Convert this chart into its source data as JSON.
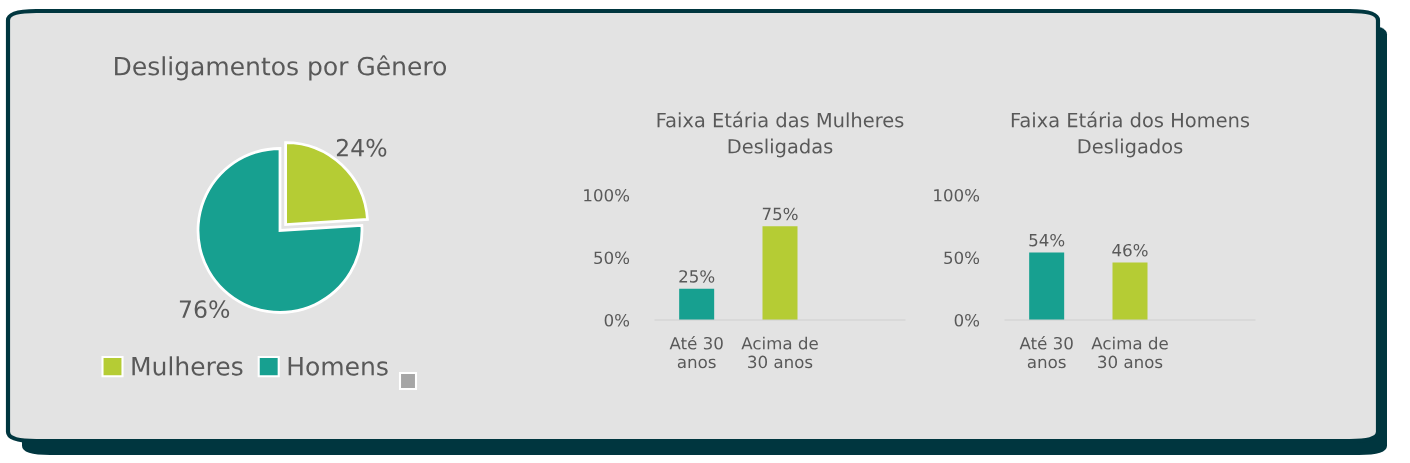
{
  "chart_data": [
    {
      "type": "pie",
      "title": "Desligamentos por Gênero",
      "categories": [
        "Mulheres",
        "Homens"
      ],
      "values": [
        24,
        76
      ],
      "colors": [
        "#b5cc34",
        "#17a090"
      ],
      "value_labels": [
        "24%",
        "76%"
      ],
      "legend": "bottom"
    },
    {
      "type": "bar",
      "title": "Faixa Etária das Mulheres\nDesligadas",
      "categories": [
        "Até 30\nanos",
        "Acima de\n30 anos"
      ],
      "values": [
        25,
        75
      ],
      "colors": [
        "#17a090",
        "#b5cc34"
      ],
      "value_labels": [
        "25%",
        "75%"
      ],
      "ylim": [
        0,
        100
      ],
      "yticks": [
        {
          "value": 0,
          "label": "0%"
        },
        {
          "value": 50,
          "label": "50%"
        },
        {
          "value": 100,
          "label": "100%"
        }
      ],
      "grid": false
    },
    {
      "type": "bar",
      "title": "Faixa Etária dos Homens\nDesligados",
      "categories": [
        "Até 30\nanos",
        "Acima de\n30 anos"
      ],
      "values": [
        54,
        46
      ],
      "colors": [
        "#17a090",
        "#b5cc34"
      ],
      "value_labels": [
        "54%",
        "46%"
      ],
      "ylim": [
        0,
        100
      ],
      "yticks": [
        {
          "value": 0,
          "label": "0%"
        },
        {
          "value": 50,
          "label": "50%"
        },
        {
          "value": 100,
          "label": "100%"
        }
      ],
      "grid": false
    }
  ]
}
